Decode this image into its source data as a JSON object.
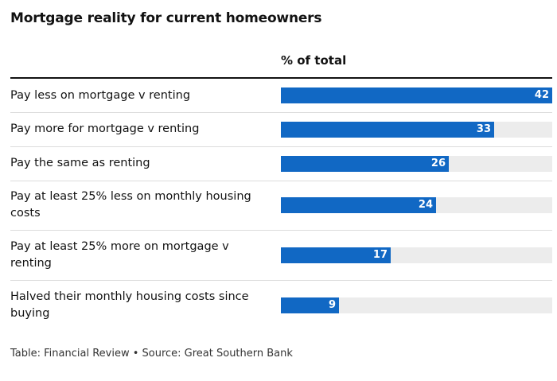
{
  "title": "Mortgage reality for current homeowners",
  "column_header": "% of total",
  "footer": "Table: Financial Review • Source: Great Southern Bank",
  "colors": {
    "bar": "#1168c4",
    "track": "#ececec"
  },
  "chart_data": {
    "type": "bar",
    "orientation": "horizontal",
    "title": "Mortgage reality for current homeowners",
    "value_header": "% of total",
    "xlim": [
      0,
      42
    ],
    "categories": [
      "Pay less on mortgage v renting",
      "Pay more for mortgage v renting",
      "Pay the same as renting",
      "Pay at least 25% less on monthly housing costs",
      "Pay at least 25% more on mortgage v renting",
      "Halved their monthly housing costs since buying"
    ],
    "values": [
      42,
      33,
      26,
      24,
      17,
      9
    ]
  }
}
